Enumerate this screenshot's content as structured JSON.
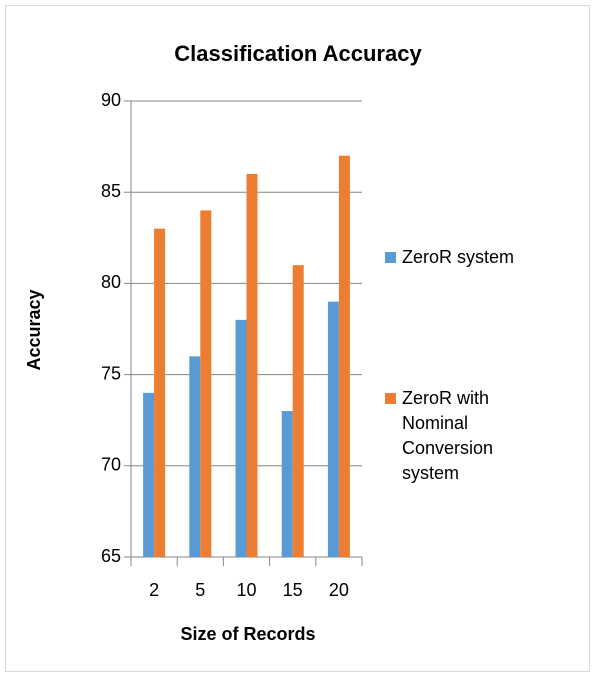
{
  "chart_data": {
    "type": "bar",
    "title": "Classification Accuracy",
    "x_label": "Size of Records",
    "y_label": "Accuracy",
    "categories": [
      "2",
      "5",
      "10",
      "15",
      "20"
    ],
    "series": [
      {
        "name": "ZeroR system",
        "color": "#5b9bd5",
        "values": [
          74,
          76,
          78,
          73,
          79
        ]
      },
      {
        "name": "ZeroR with Nominal Conversion system",
        "color": "#ed7d31",
        "values": [
          83,
          84,
          86,
          81,
          87
        ]
      }
    ],
    "ylim": [
      65,
      90
    ],
    "yticks": [
      65,
      70,
      75,
      80,
      85,
      90
    ],
    "grid": true,
    "legend": "right"
  }
}
